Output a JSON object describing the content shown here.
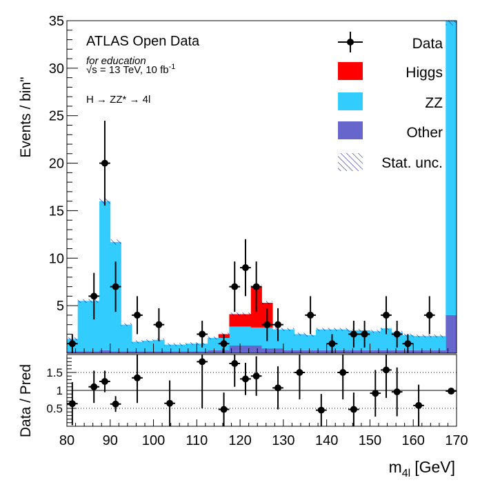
{
  "labels": {
    "experiment": "ATLAS Open Data",
    "education": "for education",
    "energy_prefix": "√s = 13 TeV, 10 fb",
    "energy_exp": "-1",
    "process": "H → ZZ* → 4l",
    "ylabel_main": "Events / bin\"",
    "ylabel_ratio": "Data / Pred",
    "xlabel_base": "m",
    "xlabel_sub": "4l",
    "xlabel_unit": "[GeV]"
  },
  "legend": {
    "data": "Data",
    "higgs": "Higgs",
    "zz": "ZZ",
    "other": "Other",
    "unc": "Stat. unc."
  },
  "colors": {
    "higgs": "#ff0000",
    "zz": "#33ccff",
    "other": "#6666cc",
    "unc": "#000099"
  },
  "chart_data": [
    {
      "type": "bar",
      "stacked": true,
      "x_edges": [
        80,
        82.5,
        85,
        87.5,
        90,
        92.5,
        95,
        97.5,
        100,
        102.5,
        105,
        107.5,
        110,
        112.5,
        115,
        117.5,
        120,
        122.5,
        125,
        127.5,
        130,
        132.5,
        135,
        137.5,
        140,
        142.5,
        145,
        147.5,
        150,
        152.5,
        155,
        157.5,
        160,
        162.5,
        165,
        167.5,
        170
      ],
      "series": [
        {
          "name": "Other",
          "values": [
            0.2,
            0.2,
            0.2,
            0.3,
            0.2,
            0.2,
            0.2,
            0.2,
            0.2,
            0.2,
            0.2,
            0.2,
            0.2,
            0.3,
            0.3,
            0.8,
            0.8,
            0.8,
            0.5,
            0.5,
            0.3,
            0.3,
            0.3,
            0.3,
            0.3,
            0.3,
            0.3,
            0.3,
            0.3,
            0.3,
            0.3,
            0.3,
            0.3,
            0.3,
            0.3,
            4.0
          ]
        },
        {
          "name": "ZZ",
          "values": [
            1.3,
            5.3,
            5.3,
            15.7,
            11.5,
            2.8,
            1.0,
            1.1,
            1.2,
            0.7,
            0.7,
            0.8,
            0.8,
            1.3,
            1.3,
            2.0,
            2.0,
            1.9,
            2.2,
            2.0,
            2.2,
            1.7,
            1.6,
            2.2,
            2.2,
            2.2,
            2.1,
            2.1,
            2.0,
            2.3,
            1.9,
            1.6,
            1.5,
            1.5,
            1.5,
            31.0
          ]
        },
        {
          "name": "Higgs",
          "values": [
            0,
            0,
            0,
            0,
            0,
            0,
            0,
            0,
            0,
            0,
            0,
            0,
            0,
            0,
            0.4,
            1.3,
            1.3,
            4.3,
            2.6,
            0,
            0,
            0,
            0,
            0,
            0,
            0,
            0,
            0,
            0,
            0,
            0,
            0,
            0,
            0,
            0,
            0
          ]
        }
      ],
      "data_points": [
        {
          "x": 81.25,
          "y": 1,
          "err": 1
        },
        {
          "x": 86.25,
          "y": 6,
          "err": 2.45
        },
        {
          "x": 88.75,
          "y": 20,
          "err": 4.47
        },
        {
          "x": 91.25,
          "y": 7,
          "err": 2.65
        },
        {
          "x": 96.25,
          "y": 4,
          "err": 2
        },
        {
          "x": 101.25,
          "y": 3,
          "err": 1.73
        },
        {
          "x": 111.25,
          "y": 2,
          "err": 1.41
        },
        {
          "x": 116.25,
          "y": 1,
          "err": 1
        },
        {
          "x": 118.75,
          "y": 7,
          "err": 2.65
        },
        {
          "x": 121.25,
          "y": 9,
          "err": 3
        },
        {
          "x": 123.75,
          "y": 7,
          "err": 2.65
        },
        {
          "x": 126.25,
          "y": 3,
          "err": 1.73
        },
        {
          "x": 128.75,
          "y": 3,
          "err": 1.73
        },
        {
          "x": 136.25,
          "y": 4,
          "err": 2
        },
        {
          "x": 141.25,
          "y": 1,
          "err": 1
        },
        {
          "x": 146.25,
          "y": 2,
          "err": 1.41
        },
        {
          "x": 148.75,
          "y": 2,
          "err": 1.41
        },
        {
          "x": 153.75,
          "y": 4,
          "err": 2
        },
        {
          "x": 156.25,
          "y": 2,
          "err": 1.41
        },
        {
          "x": 158.75,
          "y": 1,
          "err": 1
        },
        {
          "x": 163.75,
          "y": 4,
          "err": 2
        }
      ],
      "xlim": [
        80,
        170
      ],
      "ylim": [
        0,
        35
      ],
      "yticks": [
        5,
        10,
        15,
        20,
        25,
        30,
        35
      ],
      "xlabel": "m4l [GeV]",
      "ylabel": "Events / bin\""
    },
    {
      "type": "scatter",
      "ylim": [
        0,
        2
      ],
      "yticks": [
        0.5,
        1,
        1.5
      ],
      "yticklabels": [
        "0.5",
        "1",
        "1.5"
      ],
      "xticks": [
        80,
        90,
        100,
        110,
        120,
        130,
        140,
        150,
        160,
        170
      ],
      "xticklabels": [
        "80",
        "90",
        "100",
        "110",
        "120",
        "130",
        "140",
        "150",
        "160",
        "170"
      ],
      "reference_line": 1,
      "dotted_lines": [
        0.5,
        1.5
      ],
      "points": [
        {
          "x": 81.25,
          "y": 0.63,
          "err": 0.6
        },
        {
          "x": 86.25,
          "y": 1.1,
          "err": 0.45
        },
        {
          "x": 88.75,
          "y": 1.25,
          "err": 0.3
        },
        {
          "x": 91.25,
          "y": 0.62,
          "err": 0.22
        },
        {
          "x": 96.25,
          "y": 1.35,
          "err": 0.7
        },
        {
          "x": 103.75,
          "y": 0.64,
          "err": 0.64
        },
        {
          "x": 111.25,
          "y": 1.8,
          "err": 1.3
        },
        {
          "x": 116.25,
          "y": 0.47,
          "err": 0.47
        },
        {
          "x": 118.75,
          "y": 1.75,
          "err": 0.65
        },
        {
          "x": 121.25,
          "y": 1.32,
          "err": 0.45
        },
        {
          "x": 123.75,
          "y": 1.4,
          "err": 0.55
        },
        {
          "x": 128.75,
          "y": 1.07,
          "err": 0.6
        },
        {
          "x": 133.75,
          "y": 1.5,
          "err": 0.75
        },
        {
          "x": 138.75,
          "y": 0.45,
          "err": 0.45
        },
        {
          "x": 143.75,
          "y": 1.5,
          "err": 0.75
        },
        {
          "x": 146.25,
          "y": 0.47,
          "err": 0.47
        },
        {
          "x": 151.25,
          "y": 0.92,
          "err": 0.65
        },
        {
          "x": 153.75,
          "y": 1.57,
          "err": 0.78
        },
        {
          "x": 156.25,
          "y": 0.96,
          "err": 0.68
        },
        {
          "x": 161.25,
          "y": 0.58,
          "err": 0.58
        },
        {
          "x": 168.75,
          "y": 0.98,
          "err": 0.05
        }
      ]
    }
  ]
}
